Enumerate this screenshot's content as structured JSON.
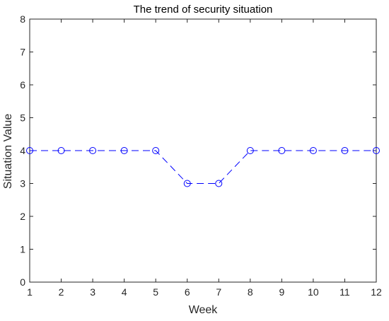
{
  "chart_data": {
    "type": "line",
    "title": "The trend of security situation",
    "xlabel": "Week",
    "ylabel": "Situation Value",
    "xlim": [
      1,
      12
    ],
    "ylim": [
      0,
      8
    ],
    "xticks": [
      1,
      2,
      3,
      4,
      5,
      6,
      7,
      8,
      9,
      10,
      11,
      12
    ],
    "yticks": [
      0,
      1,
      2,
      3,
      4,
      5,
      6,
      7,
      8
    ],
    "grid": false,
    "legend": "none",
    "series": [
      {
        "x": [
          1,
          2,
          3,
          4,
          5,
          6,
          7,
          8,
          9,
          10,
          11,
          12
        ],
        "y": [
          4,
          4,
          4,
          4,
          4,
          3,
          3,
          4,
          4,
          4,
          4,
          4
        ],
        "color": "#0000ff",
        "line_style": "dashed",
        "marker": "circle"
      }
    ]
  }
}
